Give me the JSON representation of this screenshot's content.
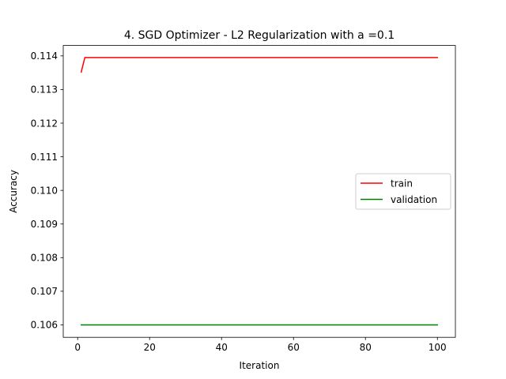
{
  "chart_data": {
    "type": "line",
    "title": "4. SGD Optimizer - L2 Regularization with a =0.1",
    "xlabel": "Iteration",
    "ylabel": "Accuracy",
    "xlim": [
      -4.0,
      105.0
    ],
    "ylim": [
      0.10563,
      0.11431
    ],
    "xticks": [
      0,
      20,
      40,
      60,
      80,
      100
    ],
    "yticks": [
      0.106,
      0.107,
      0.108,
      0.109,
      0.11,
      0.111,
      0.112,
      0.113,
      0.114
    ],
    "xtick_labels": [
      "0",
      "20",
      "40",
      "60",
      "80",
      "100"
    ],
    "ytick_labels": [
      "0.106",
      "0.107",
      "0.108",
      "0.109",
      "0.110",
      "0.111",
      "0.112",
      "0.113",
      "0.114"
    ],
    "grid": false,
    "legend_position": "center-right",
    "series": [
      {
        "name": "train",
        "color": "#ff0000",
        "x": [
          1,
          2,
          100
        ],
        "y": [
          0.11352,
          0.11395,
          0.11395
        ]
      },
      {
        "name": "validation",
        "color": "#008000",
        "x": [
          1,
          100
        ],
        "y": [
          0.106,
          0.106
        ]
      }
    ]
  }
}
